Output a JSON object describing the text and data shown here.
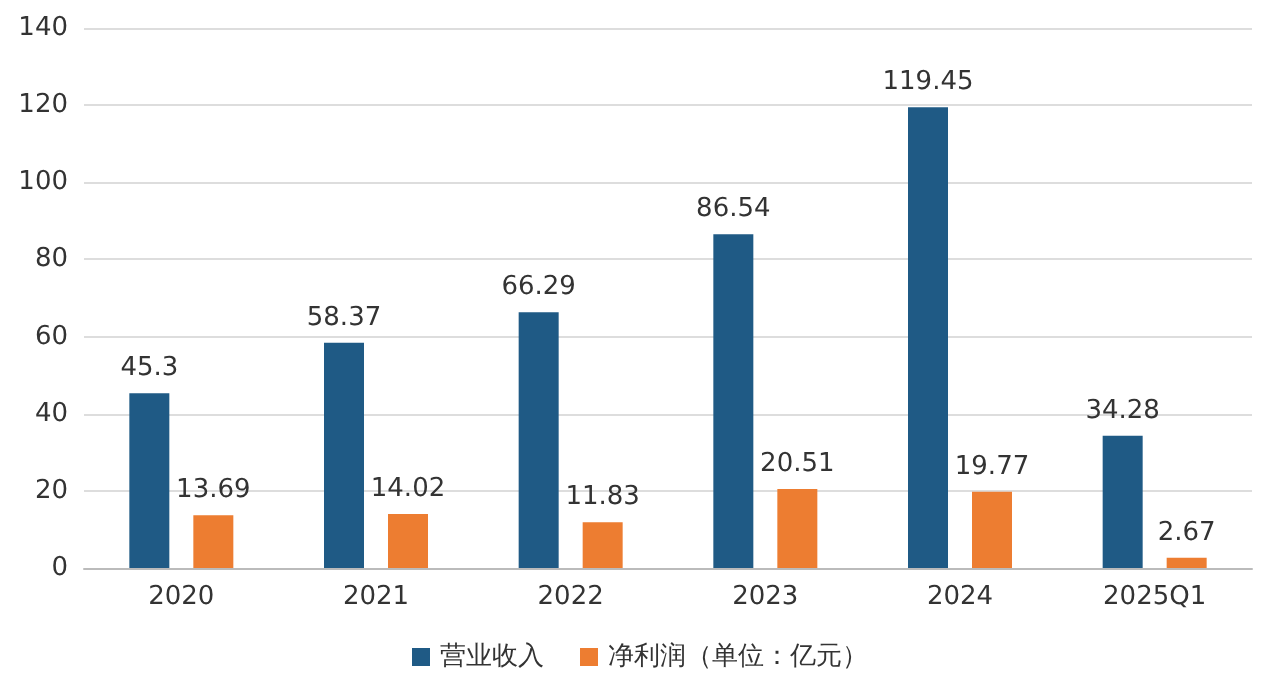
{
  "chart_data": {
    "type": "bar",
    "categories": [
      "2020",
      "2021",
      "2022",
      "2023",
      "2024",
      "2025Q1"
    ],
    "series": [
      {
        "name": "营业收入",
        "color": "#1f5a85",
        "values": [
          45.3,
          58.37,
          66.29,
          86.54,
          119.45,
          34.28
        ]
      },
      {
        "name": "净利润（单位：亿元）",
        "color": "#ed7d31",
        "values": [
          13.69,
          14.02,
          11.83,
          20.51,
          19.77,
          2.67
        ]
      }
    ],
    "ylim": [
      0,
      140
    ],
    "yticks": [
      0,
      20,
      40,
      60,
      80,
      100,
      120,
      140
    ],
    "grid": "y",
    "legend": "bottom",
    "data_labels": true
  }
}
